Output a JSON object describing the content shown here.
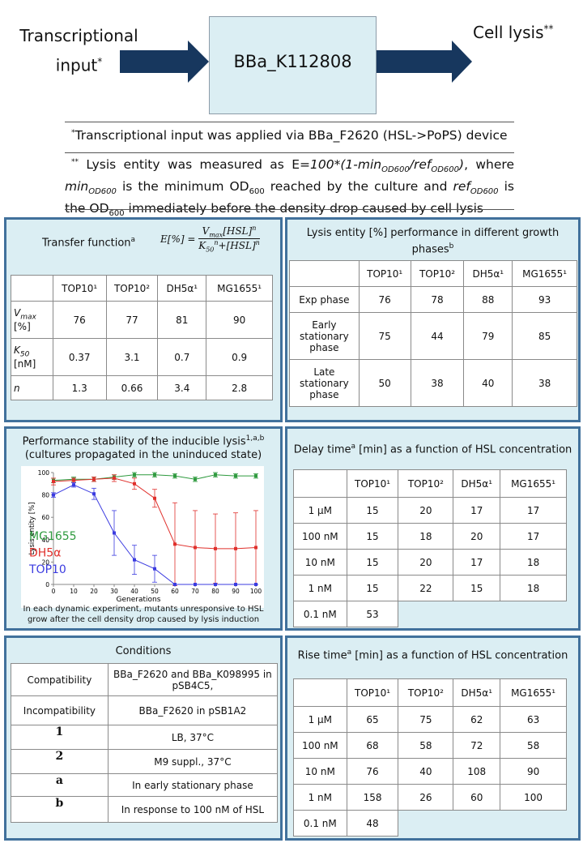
{
  "diagram": {
    "input_label": "Transcriptional input",
    "input_marker": "*",
    "device": "BBa_K112808",
    "output_label": "Cell lysis",
    "output_marker": "**"
  },
  "notes": [
    {
      "marker": "*",
      "segments": [
        "Transcriptional input was applied via BBa_F2620 (HSL->PoPS) device"
      ]
    },
    {
      "marker": "**",
      "segments": [
        "Lysis entity was measured as E=",
        "100*(1-min",
        "OD600",
        "/ref",
        "OD600",
        ")",
        ", where ",
        "min",
        "OD600",
        " is the minimum OD",
        "600",
        " reached by the culture and ",
        "ref",
        "OD600",
        " is the OD",
        "600",
        " immediately before the density drop caused by cell lysis"
      ]
    }
  ],
  "transfer_function": {
    "title": "Transfer function",
    "title_marker": "a",
    "formula": {
      "lhs": "E[%] =",
      "numerator": [
        "V",
        "max",
        "[HSL]",
        "n"
      ],
      "denominator": [
        "K",
        "50",
        "n",
        "+[HSL]",
        "n"
      ]
    },
    "table": {
      "columns": [
        "TOP10¹",
        "TOP10²",
        "DH5α¹",
        "MG1655¹"
      ],
      "rows": [
        {
          "label": {
            "symbol": "V",
            "sub": "max",
            "unit": "[%]"
          },
          "values": [
            76,
            77,
            81,
            90
          ]
        },
        {
          "label": {
            "symbol": "K",
            "sub": "50",
            "unit": "[nM]"
          },
          "values": [
            0.37,
            3.1,
            0.7,
            0.9
          ]
        },
        {
          "label": {
            "symbol": "n"
          },
          "values": [
            1.3,
            0.66,
            3.4,
            2.8
          ]
        }
      ]
    }
  },
  "growth_phases": {
    "title": "Lysis entity  [%] performance in different growth phases",
    "title_marker": "b",
    "table": {
      "columns": [
        "TOP10¹",
        "TOP10²",
        "DH5α¹",
        "MG1655¹"
      ],
      "rows": [
        {
          "label": "Exp phase",
          "values": [
            76,
            78,
            88,
            93
          ]
        },
        {
          "label": "Early stationary phase",
          "values": [
            75,
            44,
            79,
            85
          ]
        },
        {
          "label": "Late stationary phase",
          "values": [
            50,
            38,
            40,
            38
          ]
        }
      ]
    }
  },
  "chart_data": {
    "type": "line",
    "title": "Performance stability of the inducible lysis",
    "title_marker": "1,a,b",
    "subtitle": "(cultures propagated in the uninduced state)",
    "caption": "In each dynamic experiment, mutants unresponsive to HSL grow after the cell density drop caused by lysis induction",
    "xlabel": "Generations",
    "ylabel": "Lysis entity [%]",
    "x": [
      0,
      10,
      20,
      30,
      40,
      50,
      60,
      70,
      80,
      90,
      100
    ],
    "xlim": [
      0,
      100
    ],
    "xticks": [
      0,
      10,
      20,
      30,
      40,
      50,
      60,
      70,
      80,
      90,
      100
    ],
    "ylim": [
      0,
      100
    ],
    "yticks": [
      0,
      20,
      40,
      60,
      80,
      100
    ],
    "legend": "left",
    "series": [
      {
        "name": "MG1655",
        "color": "#2e9a3e",
        "values": [
          93,
          94,
          94,
          96,
          98,
          98,
          97,
          94,
          98,
          97,
          97
        ],
        "errors": [
          2,
          2,
          2,
          2,
          2,
          2,
          2,
          2,
          2,
          2,
          2
        ]
      },
      {
        "name": "DH5α",
        "color": "#e0302c",
        "values": [
          92,
          93,
          94,
          95,
          90,
          77,
          36,
          33,
          32,
          32,
          33
        ],
        "errors": [
          3,
          2,
          2,
          3,
          5,
          8,
          37,
          33,
          31,
          32,
          33
        ]
      },
      {
        "name": "TOP10",
        "color": "#3b3be0",
        "values": [
          80,
          89,
          81,
          46,
          22,
          14,
          0,
          0,
          0,
          0,
          0
        ],
        "errors": [
          2,
          2,
          5,
          20,
          13,
          12,
          0,
          0,
          0,
          0,
          0
        ]
      }
    ]
  },
  "delay_time": {
    "title": "Delay time",
    "title_marker": "a",
    "title_rest": " [min] as a function of HSL concentration",
    "table": {
      "columns": [
        "TOP10¹",
        "TOP10²",
        "DH5α¹",
        "MG1655¹"
      ],
      "rows": [
        {
          "label": "1 µM",
          "values": [
            15,
            20,
            17,
            17
          ]
        },
        {
          "label": "100 nM",
          "values": [
            15,
            18,
            20,
            17
          ]
        },
        {
          "label": "10 nM",
          "values": [
            15,
            20,
            17,
            18
          ]
        },
        {
          "label": "1 nM",
          "values": [
            15,
            22,
            15,
            18
          ]
        },
        {
          "label": "0.1 nM",
          "values": [
            53
          ]
        }
      ]
    }
  },
  "conditions": {
    "title": "Conditions",
    "rows": [
      [
        "Compatibility",
        "BBa_F2620 and BBa_K098995 in pSB4C5,"
      ],
      [
        "Incompatibility",
        "BBa_F2620 in pSB1A2"
      ],
      [
        "1",
        "LB, 37°C"
      ],
      [
        "2",
        "M9 suppl., 37°C"
      ],
      [
        "a",
        "In early stationary phase"
      ],
      [
        "b",
        "In response to 100 nM of HSL"
      ]
    ]
  },
  "rise_time": {
    "title": "Rise time",
    "title_marker": "a",
    "title_rest": " [min] as a function of HSL concentration",
    "table": {
      "columns": [
        "TOP10¹",
        "TOP10²",
        "DH5α¹",
        "MG1655¹"
      ],
      "rows": [
        {
          "label": "1 µM",
          "values": [
            65,
            75,
            62,
            63
          ]
        },
        {
          "label": "100 nM",
          "values": [
            68,
            58,
            72,
            58
          ]
        },
        {
          "label": "10 nM",
          "values": [
            76,
            40,
            108,
            90
          ]
        },
        {
          "label": "1 nM",
          "values": [
            158,
            26,
            60,
            100
          ]
        },
        {
          "label": "0.1 nM",
          "values": [
            48
          ]
        }
      ]
    }
  }
}
